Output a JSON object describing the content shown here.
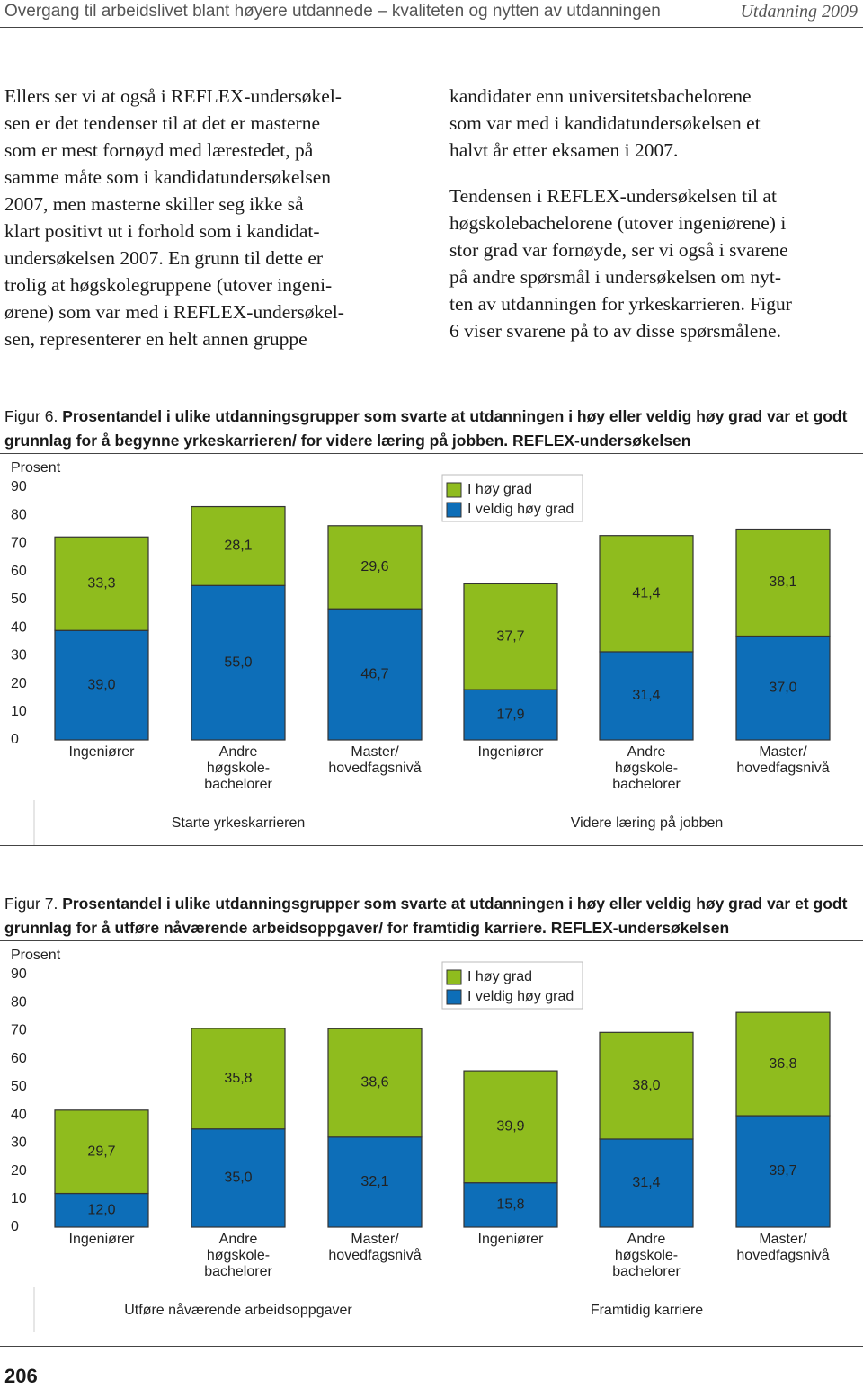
{
  "header": {
    "title": "Overgang til arbeidslivet blant høyere utdannede – kvaliteten og nytten av utdanningen",
    "publication": "Utdanning 2009"
  },
  "body": {
    "left": [
      "Ellers ser vi at også i REFLEX-undersøkel-\nsen er det tendenser til at det er masterne\nsom er mest fornøyd med lærestedet, på\nsamme måte som i kandidatundersøkelsen\n2007, men masterne skiller seg ikke så\nklart positivt ut i forhold som i kandidat-\nundersøkelsen 2007. En grunn til dette er\ntrolig at høgskolegruppene (utover ingeni-\nørene) som var med i REFLEX-undersøkel-\nsen, representerer en helt annen gruppe"
    ],
    "right": [
      "kandidater enn universitetsbachelorene\nsom var med i kandidatundersøkelsen et\nhalvt år etter eksamen i 2007.",
      "Tendensen i REFLEX-undersøkelsen til at\nhøgskolebachelorene (utover ingeniørene) i\nstor grad var fornøyde, ser vi også i svarene\npå andre spørsmål i undersøkelsen om nyt-\nten av utdanningen for yrkeskarrieren. Figur\n6 viser svarene på to av disse spørsmålene."
    ]
  },
  "figures": [
    {
      "label": "Figur 6.",
      "caption": "Prosentandel i ulike utdanningsgrupper som svarte at utdanningen i høy eller veldig høy grad var et godt grunnlag for å begynne yrkeskarrieren/ for videre læring på jobben. REFLEX-undersøkelsen"
    },
    {
      "label": "Figur 7.",
      "caption": "Prosentandel i ulike utdanningsgrupper som svarte at utdanningen i høy eller veldig høy grad var et godt grunnlag for å utføre nåværende arbeidsoppgaver/ for framtidig karriere. REFLEX-undersøkelsen"
    }
  ],
  "page_number": "206",
  "chart_data": [
    {
      "type": "stacked-bar",
      "y_label": "Prosent",
      "categories": [
        "Ingeniører",
        "Andre\nhøgskole-\nbachelorer",
        "Master/\nhovedfagsnivå",
        "Ingeniører",
        "Andre\nhøgskole-\nbachelorer",
        "Master/\nhovedfagsnivå"
      ],
      "groups": [
        "Starte yrkeskarrieren",
        "Videre læring på jobben"
      ],
      "series": [
        {
          "name": "I høy grad",
          "color": "#8fbc1e",
          "values": [
            33.3,
            28.1,
            29.6,
            37.7,
            41.4,
            38.1
          ],
          "value_labels": [
            "33,3",
            "28,1",
            "29,6",
            "37,7",
            "41,4",
            "38,1"
          ]
        },
        {
          "name": "I veldig høy grad",
          "color": "#0d6eb8",
          "values": [
            39.0,
            55.0,
            46.7,
            17.9,
            31.4,
            37.0
          ],
          "value_labels": [
            "39,0",
            "55,0",
            "46,7",
            "17,9",
            "31,4",
            "37,0"
          ]
        }
      ],
      "ylim": [
        0,
        90
      ],
      "yticks": [
        0,
        10,
        20,
        30,
        40,
        50,
        60,
        70,
        80,
        90
      ]
    },
    {
      "type": "stacked-bar",
      "y_label": "Prosent",
      "categories": [
        "Ingeniører",
        "Andre\nhøgskole-\nbachelorer",
        "Master/\nhovedfagsnivå",
        "Ingeniører",
        "Andre\nhøgskole-\nbachelorer",
        "Master/\nhovedfagsnivå"
      ],
      "groups": [
        "Utføre nåværende arbeidsoppgaver",
        "Framtidig karriere"
      ],
      "series": [
        {
          "name": "I høy grad",
          "color": "#8fbc1e",
          "values": [
            29.7,
            35.8,
            38.6,
            39.9,
            38.0,
            36.8
          ],
          "value_labels": [
            "29,7",
            "35,8",
            "38,6",
            "39,9",
            "38,0",
            "36,8"
          ]
        },
        {
          "name": "I veldig høy grad",
          "color": "#0d6eb8",
          "values": [
            12.0,
            35.0,
            32.1,
            15.8,
            31.4,
            39.7
          ],
          "value_labels": [
            "12,0",
            "35,0",
            "32,1",
            "15,8",
            "31,4",
            "39,7"
          ]
        }
      ],
      "ylim": [
        0,
        90
      ],
      "yticks": [
        0,
        10,
        20,
        30,
        40,
        50,
        60,
        70,
        80,
        90
      ]
    }
  ]
}
